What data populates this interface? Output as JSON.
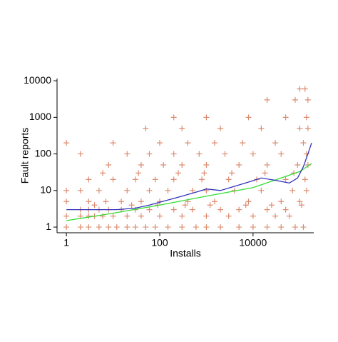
{
  "chart_data": {
    "type": "scatter",
    "xlabel": "Installs",
    "ylabel": "Fault reports",
    "xscale": "log",
    "yscale": "log",
    "xlim": [
      0.63,
      200000
    ],
    "ylim": [
      0.7,
      11500
    ],
    "xticks": [
      1,
      100,
      10000
    ],
    "yticks": [
      1,
      10,
      100,
      1000,
      10000
    ],
    "series": [
      {
        "type": "scatter",
        "color": "#d9805f",
        "x": [
          1,
          2,
          3,
          5,
          8,
          12,
          20,
          30,
          50,
          80,
          150,
          300,
          600,
          1000,
          2000,
          5000,
          10000,
          20000,
          40000,
          80000,
          120000,
          1,
          2,
          3,
          4,
          6,
          10,
          20,
          40,
          100,
          300,
          1000,
          3000,
          10000,
          30000,
          60000,
          2,
          3,
          5,
          8,
          15,
          30,
          60,
          200,
          500,
          2000,
          5000,
          20000,
          50000,
          1,
          3,
          7,
          15,
          40,
          100,
          400,
          1500,
          8000,
          40000,
          100000,
          1,
          2,
          5,
          20,
          60,
          150,
          500,
          1000,
          4000,
          15000,
          70000,
          140000,
          3,
          10,
          30,
          80,
          200,
          800,
          3000,
          12000,
          50000,
          130000,
          8,
          40,
          120,
          300,
          1000,
          5000,
          20000,
          90000,
          150000,
          2,
          20,
          60,
          200,
          700,
          2500,
          10000,
          40000,
          140000,
          1,
          10,
          100,
          400,
          1500,
          6000,
          30000,
          120000,
          50,
          300,
          2000,
          15000,
          100000,
          150000,
          200,
          1000,
          8000,
          50000,
          140000,
          20000,
          80000,
          150000,
          100000,
          130000,
          4,
          25,
          90,
          350,
          1200,
          7000,
          25000,
          110000,
          6,
          35,
          250,
          900,
          3500,
          18000,
          75000
        ],
        "values": [
          1,
          1,
          1,
          1,
          1,
          1,
          1,
          1,
          1,
          1,
          1,
          1,
          1,
          1,
          1,
          1,
          1,
          1,
          1,
          1,
          1,
          2,
          2,
          2,
          2,
          2,
          2,
          2,
          2,
          2,
          2,
          2,
          2,
          2,
          2,
          2,
          3,
          3,
          3,
          3,
          3,
          3,
          3,
          3,
          3,
          3,
          3,
          3,
          3,
          5,
          5,
          5,
          5,
          5,
          5,
          5,
          5,
          5,
          5,
          5,
          10,
          10,
          10,
          10,
          10,
          10,
          10,
          10,
          10,
          10,
          10,
          10,
          20,
          20,
          20,
          20,
          20,
          20,
          20,
          20,
          20,
          20,
          50,
          50,
          50,
          50,
          50,
          50,
          50,
          50,
          50,
          100,
          100,
          100,
          100,
          100,
          100,
          100,
          100,
          100,
          200,
          200,
          200,
          200,
          200,
          200,
          200,
          200,
          500,
          500,
          500,
          500,
          500,
          500,
          1000,
          1000,
          1000,
          1000,
          1000,
          3000,
          3000,
          3000,
          6000,
          6000,
          4,
          4,
          4,
          4,
          4,
          4,
          4,
          4,
          30,
          30,
          30,
          30,
          30,
          30,
          30
        ]
      },
      {
        "type": "line",
        "color": "#33dd33",
        "x": [
          1,
          10,
          100,
          1000,
          10000,
          100000,
          180000
        ],
        "values": [
          1.5,
          2.4,
          4,
          7,
          12,
          33,
          55
        ]
      },
      {
        "type": "line",
        "color": "#3333bb",
        "x": [
          1,
          5,
          12,
          30,
          60,
          150,
          300,
          600,
          1000,
          2000,
          4000,
          8000,
          15000,
          30000,
          60000,
          90000,
          120000,
          150000,
          180000
        ],
        "values": [
          3,
          3,
          3,
          3.3,
          4,
          5.5,
          7,
          9,
          11,
          10,
          13,
          17,
          22,
          19,
          16,
          22,
          45,
          100,
          200
        ]
      }
    ]
  }
}
